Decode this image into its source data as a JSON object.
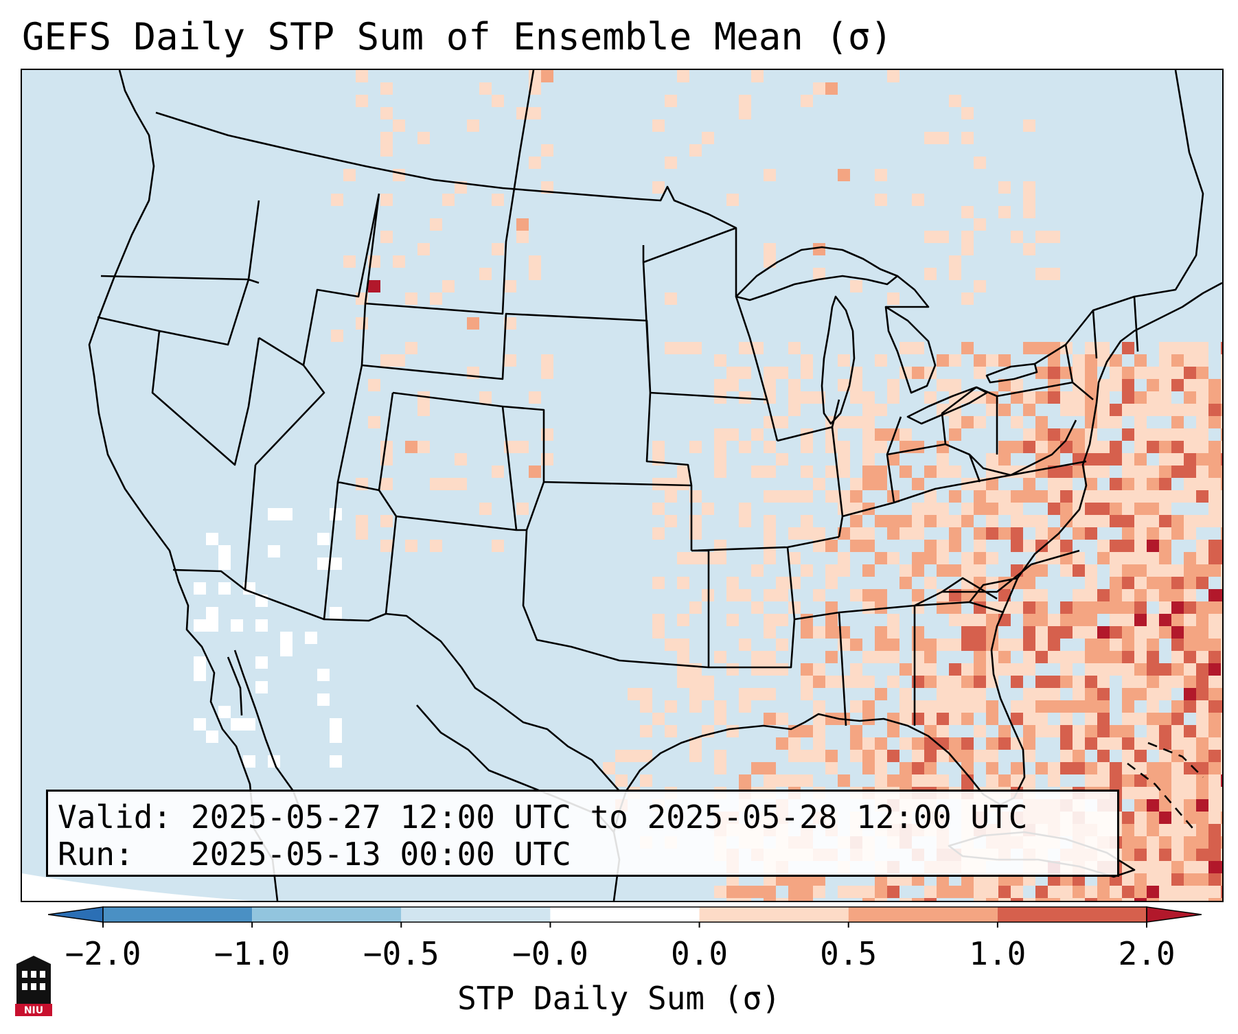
{
  "title": "GEFS Daily STP Sum of Ensemble Mean (σ)",
  "info": {
    "valid_label": "Valid:",
    "valid_value": "2025-05-27 12:00 UTC to 2025-05-28 12:00 UTC",
    "run_label": "Run:",
    "run_value": "2025-05-13 00:00 UTC"
  },
  "colorbar": {
    "label": "STP Daily Sum (σ)",
    "ticks": [
      "−2.0",
      "−1.0",
      "−0.5",
      "−0.0",
      "0.0",
      "0.5",
      "1.0",
      "2.0"
    ],
    "bins": [
      {
        "range": "< -2.0",
        "color": "#2b6fb5"
      },
      {
        "range": "-2.0 to -1.0",
        "color": "#4a90c4"
      },
      {
        "range": "-1.0 to -0.5",
        "color": "#92c5de"
      },
      {
        "range": "-0.5 to -0.0",
        "color": "#d1e5f0"
      },
      {
        "range": "-0.0 to 0.0",
        "color": "#ffffff"
      },
      {
        "range": "0.0 to 0.5",
        "color": "#fddbc7"
      },
      {
        "range": "0.5 to 1.0",
        "color": "#f4a582"
      },
      {
        "range": "1.0 to 2.0",
        "color": "#d6604d"
      },
      {
        "range": "> 2.0",
        "color": "#b2182b"
      }
    ]
  },
  "map": {
    "background_color": "#d1e5f0",
    "border_color": "#000000",
    "region": "CONUS",
    "features": [
      "state-borders",
      "coastlines",
      "lakes",
      "country-borders"
    ]
  },
  "logo": {
    "text": "NIU",
    "color": "#c8102e"
  }
}
